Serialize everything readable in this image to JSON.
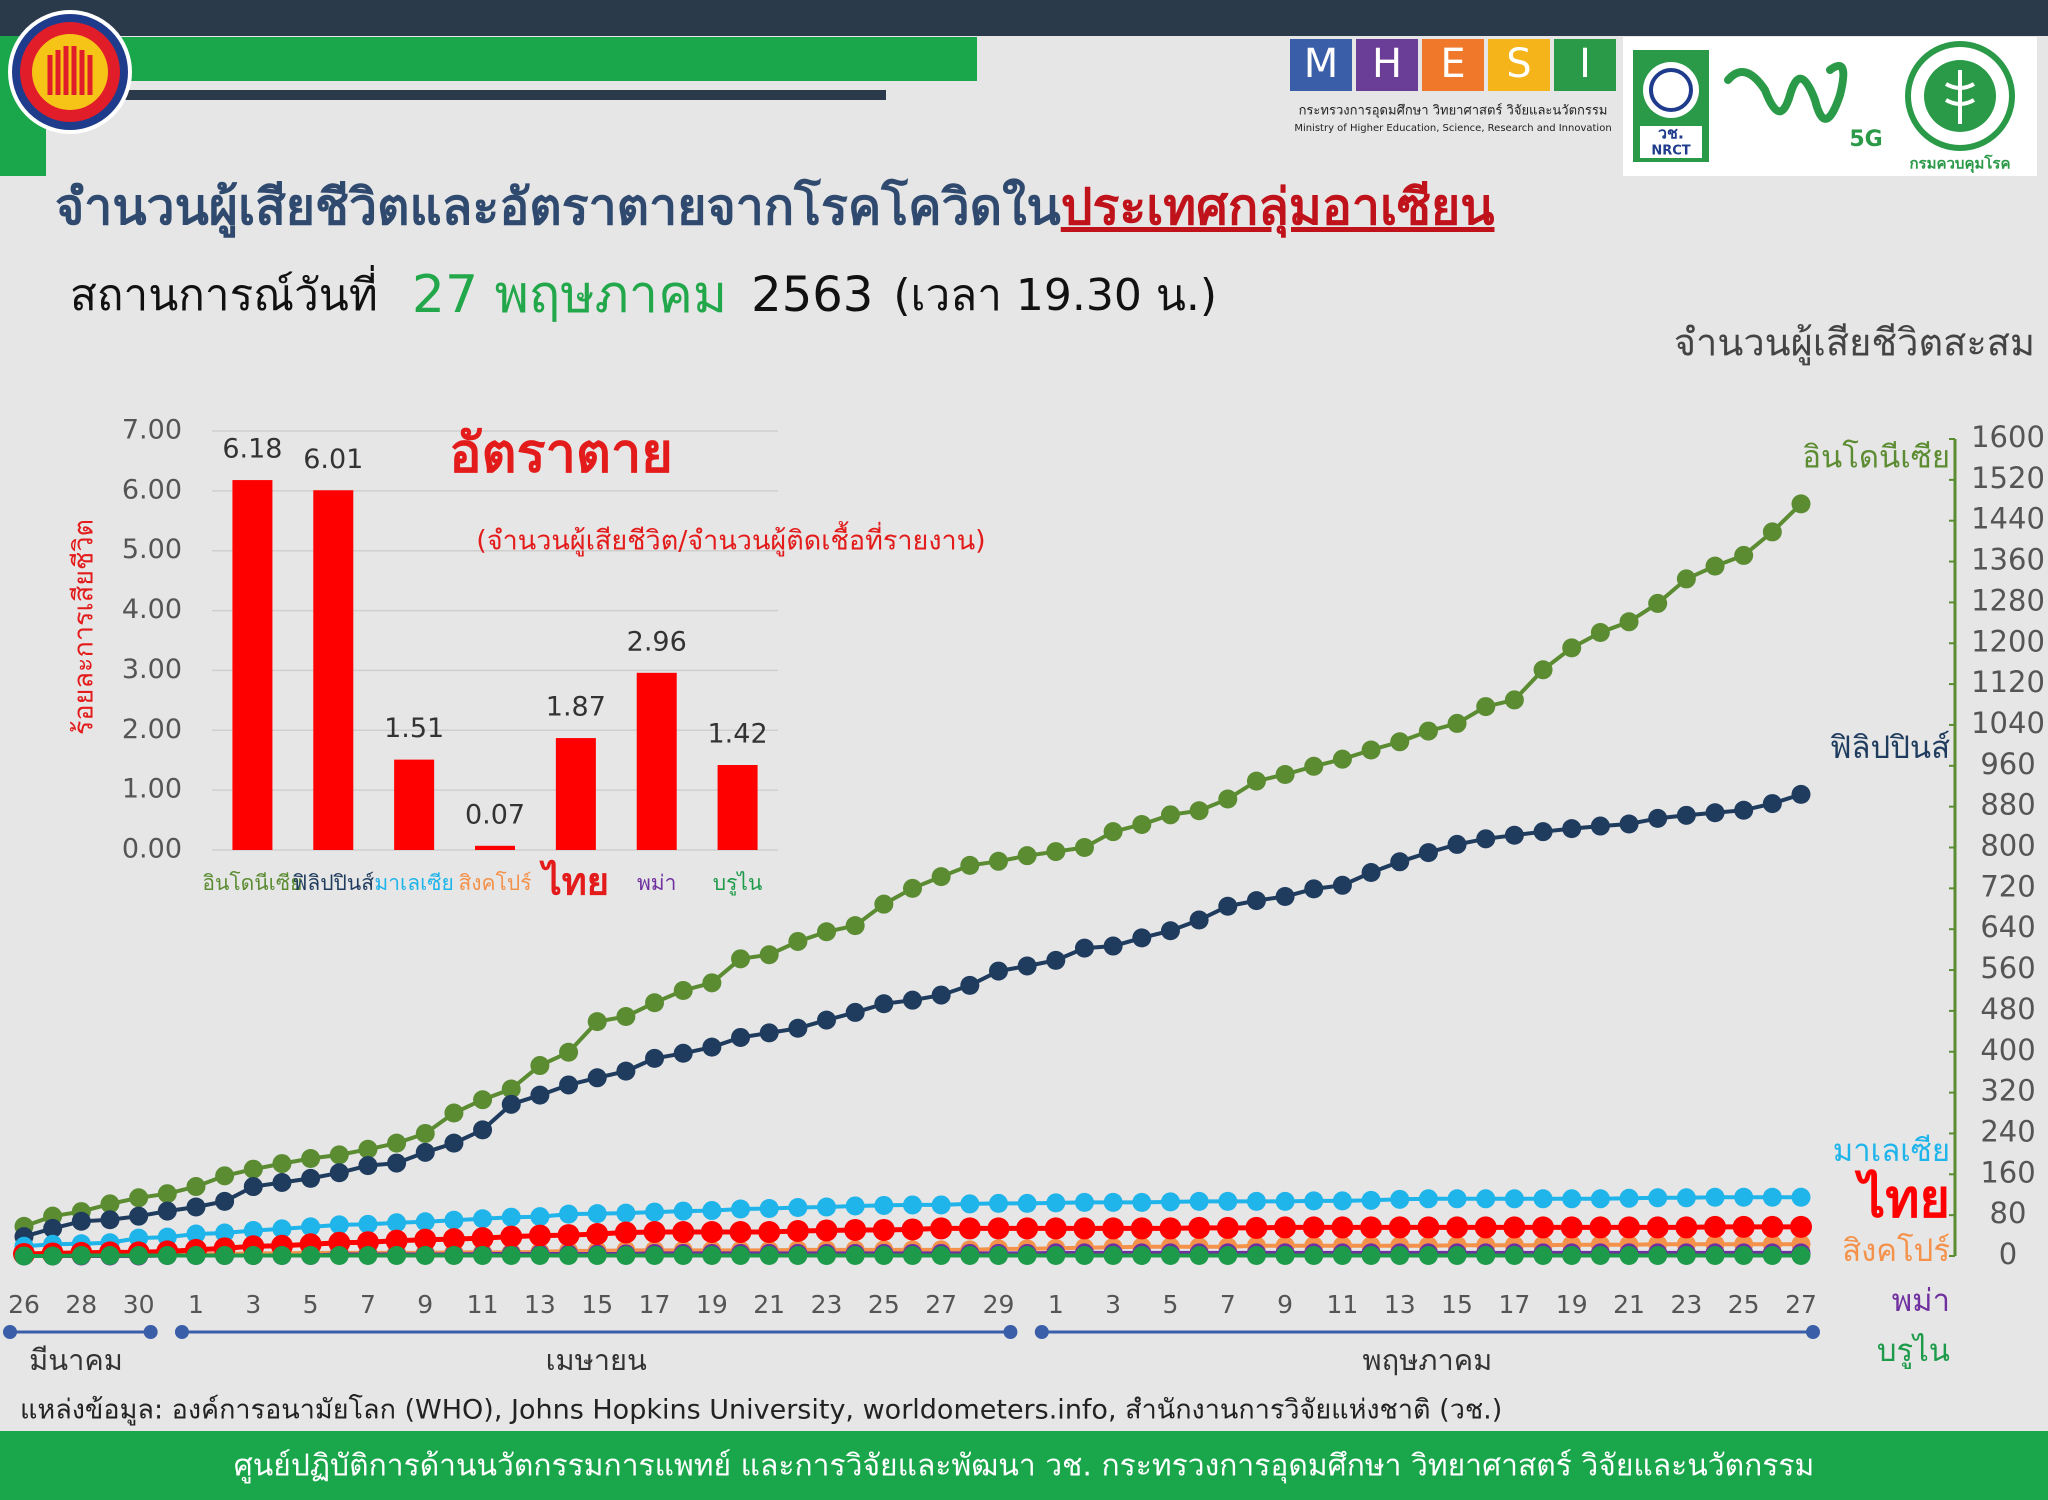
{
  "header": {
    "title_main": "จำนวนผู้เสียชีวิตและอัตราตายจากโรคโควิดใน",
    "title_highlight": "ประเทศกลุ่มอาเซียน",
    "situation_label": "สถานการณ์วันที่",
    "situation_date": "27 พฤษภาคม",
    "situation_year": "2563",
    "situation_time": "(เวลา 19.30 น.)",
    "mhesi_letters": [
      "M",
      "H",
      "E",
      "S",
      "I"
    ],
    "ministry_thai": "กระทรวงการอุดมศึกษา วิทยาศาสตร์ วิจัยและนวัตกรรม",
    "ministry_english": "Ministry of Higher Education, Science, Research and Innovation",
    "nrct_thai": "วช.",
    "nrct_english": "NRCT",
    "logo_5g": "5G",
    "ddc_name": "กรมควบคุมโรค"
  },
  "chart_data": [
    {
      "type": "bar",
      "title": "อัตราตาย",
      "subtitle": "(จำนวนผู้เสียชีวิต/จำนวนผู้ติดเชื้อที่รายงาน)",
      "y_label": "ร้อยละการเสียชีวิต",
      "categories": [
        "อินโดนีเซีย",
        "ฟิลิปปินส์",
        "มาเลเซีย",
        "สิงคโปร์",
        "ไทย",
        "พม่า",
        "บรูไน"
      ],
      "category_colors": [
        "#5b8c32",
        "#1f3c5e",
        "#1fb4ea",
        "#f4914a",
        "#e31b1b",
        "#7030a0",
        "#1e9b4a"
      ],
      "category_emphasis": [
        false,
        false,
        false,
        false,
        true,
        false,
        false
      ],
      "values": [
        6.18,
        6.01,
        1.51,
        0.07,
        1.87,
        2.96,
        1.42
      ],
      "color": "#ff0000",
      "ylim": [
        0,
        7
      ],
      "yticks": [
        {
          "value": 0,
          "label": "0.00"
        },
        {
          "value": 1,
          "label": "1.00"
        },
        {
          "value": 2,
          "label": "2.00"
        },
        {
          "value": 3,
          "label": "3.00"
        },
        {
          "value": 4,
          "label": "4.00"
        },
        {
          "value": 5,
          "label": "5.00"
        },
        {
          "value": 6,
          "label": "6.00"
        },
        {
          "value": 7,
          "label": "7.00"
        }
      ],
      "grid": true
    },
    {
      "type": "line",
      "y_label": "จำนวนผู้เสียชีวิตสะสม",
      "categories": [
        "26",
        null,
        "28",
        null,
        "30",
        null,
        "1",
        null,
        "3",
        null,
        "5",
        null,
        "7",
        null,
        "9",
        null,
        "11",
        null,
        "13",
        null,
        "15",
        null,
        "17",
        null,
        "19",
        null,
        "21",
        null,
        "23",
        null,
        "25",
        null,
        "27",
        null,
        "29",
        null,
        "1",
        null,
        "3",
        null,
        "5",
        null,
        "7",
        null,
        "9",
        null,
        "11",
        null,
        "13",
        null,
        "15",
        null,
        "17",
        null,
        "19",
        null,
        "21",
        null,
        "23",
        null,
        "25",
        null,
        "27"
      ],
      "months": [
        "มีนาคม",
        "เมษายน",
        "พฤษภาคม"
      ],
      "source": "แหล่งข้อมูล: องค์การอนามัยโลก (WHO), Johns Hopkins University, worldometers.info, สำนักงานการวิจัยแห่งชาติ (วช.)",
      "y2lim": [
        0,
        1600
      ],
      "y2ticks": [
        0,
        80,
        160,
        240,
        320,
        400,
        480,
        560,
        640,
        720,
        800,
        880,
        960,
        1040,
        1120,
        1200,
        1280,
        1360,
        1440,
        1520,
        1600
      ],
      "series": [
        {
          "name": "อินโดนีเซีย",
          "color": "#5b8c32",
          "axis": "y2",
          "emphasis": false,
          "values": [
            58,
            78,
            87,
            102,
            114,
            122,
            136,
            157,
            170,
            181,
            191,
            198,
            209,
            221,
            240,
            280,
            306,
            327,
            373,
            399,
            459,
            469,
            496,
            520,
            535,
            582,
            590,
            616,
            635,
            647,
            689,
            720,
            743,
            765,
            773,
            784,
            792,
            800,
            831,
            845,
            864,
            872,
            895,
            930,
            943,
            959,
            973,
            991,
            1007,
            1028,
            1043,
            1076,
            1089,
            1148,
            1191,
            1221,
            1242,
            1278,
            1326,
            1351,
            1372,
            1418,
            1473
          ]
        },
        {
          "name": "ฟิลิปปินส์",
          "color": "#1f3c5e",
          "axis": "y2",
          "emphasis": false,
          "values": [
            38,
            54,
            68,
            71,
            78,
            88,
            96,
            107,
            136,
            144,
            152,
            163,
            177,
            182,
            203,
            221,
            247,
            297,
            315,
            335,
            349,
            362,
            387,
            397,
            409,
            428,
            437,
            446,
            462,
            477,
            494,
            501,
            511,
            530,
            558,
            568,
            579,
            603,
            607,
            623,
            637,
            658,
            685,
            696,
            704,
            719,
            726,
            751,
            772,
            790,
            806,
            817,
            824,
            831,
            837,
            842,
            846,
            857,
            863,
            868,
            873,
            886,
            904
          ]
        },
        {
          "name": "มาเลเซีย",
          "color": "#1fb4ea",
          "axis": "y2",
          "emphasis": false,
          "values": [
            19,
            23,
            24,
            26,
            35,
            37,
            43,
            45,
            50,
            53,
            57,
            61,
            62,
            65,
            67,
            70,
            73,
            76,
            77,
            82,
            83,
            84,
            86,
            88,
            89,
            92,
            93,
            95,
            96,
            98,
            99,
            100,
            100,
            102,
            103,
            103,
            104,
            105,
            105,
            105,
            106,
            107,
            107,
            107,
            107,
            108,
            108,
            109,
            111,
            112,
            112,
            112,
            112,
            112,
            112,
            112,
            113,
            114,
            114,
            115,
            115,
            115,
            115
          ]
        },
        {
          "name": "สิงคโปร์",
          "color": "#f4914a",
          "axis": "y2",
          "emphasis": false,
          "values": [
            2,
            2,
            2,
            2,
            2,
            3,
            3,
            4,
            5,
            5,
            6,
            6,
            6,
            6,
            6,
            7,
            7,
            7,
            8,
            10,
            10,
            11,
            11,
            11,
            11,
            11,
            11,
            12,
            12,
            12,
            12,
            12,
            12,
            12,
            14,
            14,
            15,
            16,
            17,
            18,
            18,
            18,
            18,
            20,
            20,
            20,
            20,
            20,
            20,
            20,
            21,
            21,
            21,
            21,
            22,
            22,
            22,
            23,
            23,
            23,
            23,
            23,
            23
          ]
        },
        {
          "name": "พม่า",
          "color": "#7030a0",
          "axis": "y2",
          "emphasis": false,
          "values": [
            0,
            0,
            0,
            0,
            0,
            1,
            1,
            1,
            1,
            1,
            1,
            3,
            3,
            3,
            3,
            3,
            4,
            4,
            4,
            4,
            4,
            4,
            5,
            5,
            5,
            5,
            5,
            5,
            5,
            5,
            5,
            5,
            5,
            5,
            5,
            5,
            6,
            6,
            6,
            6,
            6,
            6,
            6,
            6,
            6,
            6,
            6,
            6,
            6,
            6,
            6,
            6,
            6,
            6,
            6,
            6,
            6,
            6,
            6,
            6,
            6,
            6,
            6
          ]
        },
        {
          "name": "ไทย",
          "color": "#ff0000",
          "axis": "y2",
          "emphasis": true,
          "values": [
            4,
            5,
            6,
            7,
            7,
            9,
            12,
            15,
            19,
            20,
            23,
            26,
            27,
            30,
            32,
            33,
            35,
            38,
            40,
            41,
            43,
            46,
            47,
            47,
            47,
            47,
            47,
            49,
            50,
            51,
            51,
            52,
            54,
            54,
            54,
            54,
            54,
            54,
            54,
            54,
            54,
            55,
            55,
            55,
            56,
            56,
            56,
            56,
            56,
            56,
            56,
            56,
            56,
            56,
            56,
            56,
            56,
            56,
            56,
            57,
            57,
            57,
            57
          ]
        },
        {
          "name": "บรูไน",
          "color": "#1e9b4a",
          "axis": "y2",
          "emphasis": false,
          "values": [
            0,
            0,
            1,
            1,
            1,
            1,
            1,
            1,
            1,
            1,
            1,
            1,
            1,
            1,
            1,
            1,
            1,
            1,
            1,
            1,
            1,
            1,
            1,
            1,
            1,
            1,
            1,
            1,
            1,
            1,
            1,
            1,
            1,
            1,
            1,
            1,
            1,
            1,
            1,
            1,
            1,
            1,
            1,
            1,
            1,
            1,
            1,
            1,
            1,
            1,
            1,
            1,
            1,
            1,
            1,
            1,
            1,
            1,
            1,
            1,
            1,
            1,
            1
          ]
        }
      ]
    }
  ],
  "footer": {
    "text": "ศูนย์ปฏิบัติการด้านนวัตกรรมการแพทย์ และการวิจัยและพัฒนา  วช.    กระทรวงการอุดมศึกษา วิทยาศาสตร์ วิจัยและนวัตกรรม"
  }
}
